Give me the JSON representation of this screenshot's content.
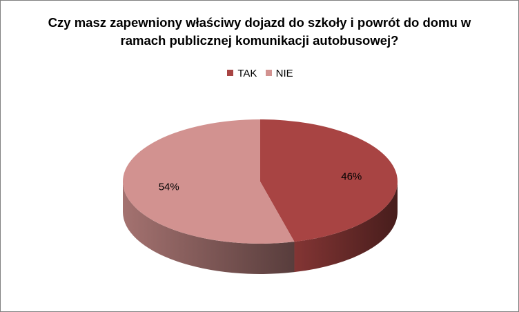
{
  "chart_data": {
    "type": "pie",
    "title": "Czy masz zapewniony właściwy dojazd do szkoły i powrót do domu w ramach publicznej komunikacji autobusowej?",
    "categories": [
      "TAK",
      "NIE"
    ],
    "values": [
      46,
      54
    ],
    "labels": [
      "46%",
      "54%"
    ],
    "colors": [
      "#a84443",
      "#d29290"
    ],
    "legend_position": "top"
  }
}
